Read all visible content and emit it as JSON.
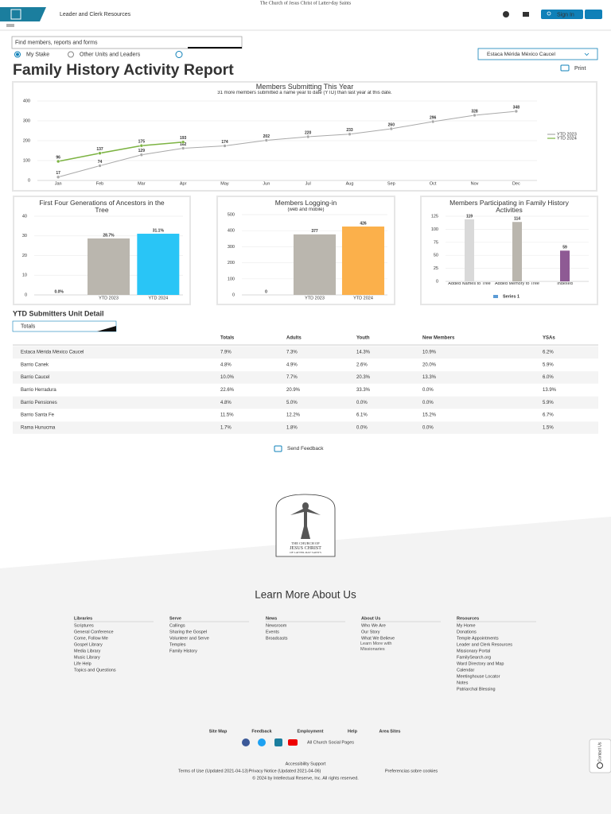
{
  "header": {
    "church_name": "The Church of Jesus Christ of Latter-day Saints",
    "app_name": "Leader and Clerk Resources",
    "sign_in": "Sign In"
  },
  "search": {
    "placeholder": "Find members, reports and forms"
  },
  "scope_options": [
    "My Stake",
    "Other Units and Leaders"
  ],
  "unit_select": "Estaca Mérida México Caucel",
  "page_title": "Family History Activity Report",
  "print": "Print",
  "chart_data": [
    {
      "type": "line",
      "title": "Members Submitting This Year",
      "subtitle": "31 more members submitted a name year to date (YTD) than last year at this date.",
      "categories": [
        "Jan",
        "Feb",
        "Mar",
        "Apr",
        "May",
        "Jun",
        "Jul",
        "Aug",
        "Sep",
        "Oct",
        "Nov",
        "Dec"
      ],
      "series": [
        {
          "name": "YTD 2023",
          "color": "#a9a9a9",
          "values": [
            17,
            74,
            129,
            162,
            174,
            202,
            220,
            233,
            260,
            296,
            328,
            348
          ]
        },
        {
          "name": "YTD 2024",
          "color": "#7cb342",
          "values": [
            96,
            137,
            175,
            193,
            null,
            null,
            null,
            null,
            null,
            null,
            null,
            null
          ]
        }
      ],
      "ylim": [
        0,
        400
      ],
      "yticks": [
        0,
        100,
        200,
        300,
        400
      ],
      "grid": true,
      "legend": "right"
    },
    {
      "type": "bar",
      "title": "First Four Generations of Ancestors in the Tree",
      "categories": [
        null,
        "YTD 2023",
        "YTD 2024"
      ],
      "values": [
        0,
        28.7,
        31.1
      ],
      "value_labels": [
        "0.0%",
        "28.7%",
        "31.1%"
      ],
      "colors": [
        "#bab6ae",
        "#bab6ae",
        "#29c5f6"
      ],
      "ylim": [
        0,
        40
      ],
      "yticks": [
        0,
        10,
        20,
        30,
        40
      ],
      "grid": true
    },
    {
      "type": "bar",
      "title": "Members Logging-in",
      "subtitle": "(web and mobile)",
      "categories": [
        null,
        "YTD 2023",
        "YTD 2024"
      ],
      "values": [
        0,
        377,
        426
      ],
      "colors": [
        "#bab6ae",
        "#bab6ae",
        "#fbb04b"
      ],
      "ylim": [
        0,
        500
      ],
      "yticks": [
        0,
        100,
        200,
        300,
        400,
        500
      ],
      "grid": true
    },
    {
      "type": "bar",
      "title": "Members Participating in Family History Activities",
      "categories": [
        "Added Names to Tree",
        "Added Memory to Tree",
        "Indexed"
      ],
      "series": [
        {
          "name": "Series 1",
          "color": "#5b9bd5",
          "values": [
            119,
            114,
            59
          ],
          "colors": [
            "#d9d9d9",
            "#bab6ae",
            "#8e5a94"
          ]
        }
      ],
      "ylim": [
        0,
        125
      ],
      "yticks": [
        0,
        25,
        50,
        75,
        100,
        125
      ],
      "grid": true,
      "legend": "bottom"
    }
  ],
  "detail": {
    "title": "YTD Submitters Unit Detail",
    "tab": "Totals",
    "columns": [
      "Totals",
      "Adults",
      "Youth",
      "New Members",
      "YSAs"
    ],
    "rows": [
      {
        "unit": "Estaca Mérida México Caucel",
        "cells": [
          "7.9%",
          "7.3%",
          "14.3%",
          "10.9%",
          "6.2%"
        ]
      },
      {
        "unit": "Barrio Canek",
        "cells": [
          "4.8%",
          "4.9%",
          "2.6%",
          "20.0%",
          "5.9%"
        ]
      },
      {
        "unit": "Barrio Caucel",
        "cells": [
          "10.0%",
          "7.7%",
          "20.3%",
          "13.3%",
          "6.0%"
        ]
      },
      {
        "unit": "Barrio Herradura",
        "cells": [
          "22.6%",
          "20.9%",
          "33.3%",
          "0.0%",
          "13.9%"
        ]
      },
      {
        "unit": "Barrio Pensiones",
        "cells": [
          "4.8%",
          "5.0%",
          "0.0%",
          "0.0%",
          "5.9%"
        ]
      },
      {
        "unit": "Barrio Santa Fe",
        "cells": [
          "11.5%",
          "12.2%",
          "6.1%",
          "15.2%",
          "6.7%"
        ]
      },
      {
        "unit": "Rama Hunucma",
        "cells": [
          "1.7%",
          "1.8%",
          "0.0%",
          "0.0%",
          "1.5%"
        ]
      }
    ]
  },
  "feedback": "Send Feedback",
  "logo": [
    "THE CHURCH OF",
    "JESUS CHRIST",
    "OF LATTER-DAY SAINTS"
  ],
  "footer": {
    "heading": "Learn More About Us",
    "columns": [
      {
        "title": "Libraries",
        "links": [
          "Scriptures",
          "General Conference",
          "Come, Follow Me",
          "Gospel Library",
          "Media Library",
          "Music Library",
          "Life Help",
          "Topics and Questions"
        ]
      },
      {
        "title": "Serve",
        "links": [
          "Callings",
          "Sharing the Gospel",
          "Volunteer and Serve",
          "Temples",
          "Family History"
        ]
      },
      {
        "title": "News",
        "links": [
          "Newsroom",
          "Events",
          "Broadcasts"
        ]
      },
      {
        "title": "About Us",
        "links": [
          "Who We Are",
          "Our Story",
          "What We Believe",
          "Learn More with Missionaries"
        ]
      },
      {
        "title": "Resources",
        "links": [
          "My Home",
          "Donations",
          "Temple Appointments",
          "Leader and Clerk Resources",
          "Missionary Portal",
          "FamilySearch.org",
          "Ward Directory and Map",
          "Calendar",
          "Meetinghouse Locator",
          "Notes",
          "Patriarchal Blessing"
        ]
      }
    ],
    "bottom_links": [
      "Site Map",
      "Feedback",
      "Employment",
      "Help",
      "Area Sites"
    ],
    "social": "All Church Social Pages",
    "accessibility": "Accessibility Support",
    "legal": [
      "Terms of Use (Updated 2021-04-13)",
      "Privacy Notice (Updated 2021-04-06)",
      "Preferencias sobre cookies"
    ],
    "copyright": "© 2024 by Intellectual Reserve, Inc. All rights reserved.",
    "contact": "Contact Us"
  }
}
